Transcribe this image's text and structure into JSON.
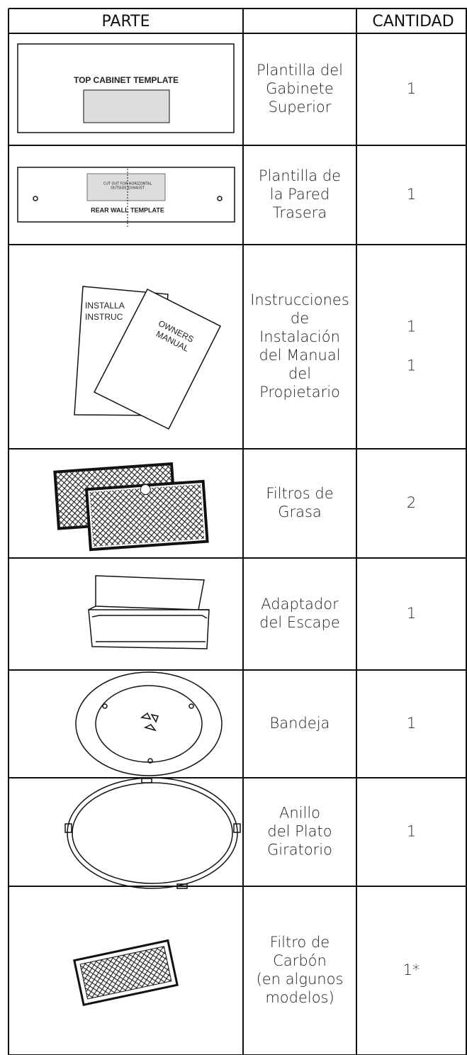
{
  "table": {
    "header": {
      "part": "PARTE",
      "quantity": "CANTIDAD"
    },
    "rows": [
      {
        "illustration": {
          "labels": [
            "TOP CABINET TEMPLATE"
          ]
        },
        "name": [
          "Plantilla del",
          "Gabinete",
          "Superior"
        ],
        "quantity": [
          "1"
        ]
      },
      {
        "illustration": {
          "labels": [
            "REAR WALL TEMPLATE",
            "CUT OUT FOR HORIZONTAL",
            "OUTSIDE EXHAUST"
          ]
        },
        "name": [
          "Plantilla de",
          "la Pared",
          "Trasera"
        ],
        "quantity": [
          "1"
        ]
      },
      {
        "illustration": {
          "labels": [
            "INSTALLA",
            "INSTRUC",
            "OWNERS",
            "MANUAL"
          ]
        },
        "name": [
          "Instrucciones",
          "de",
          "Instalación",
          "del Manual",
          "del",
          "Propietario"
        ],
        "quantity": [
          "1",
          "1"
        ]
      },
      {
        "name": [
          "Filtros de",
          "Grasa"
        ],
        "quantity": [
          "2"
        ]
      },
      {
        "name": [
          "Adaptador",
          "del Escape"
        ],
        "quantity": [
          "1"
        ]
      },
      {
        "name": [
          "Bandeja"
        ],
        "quantity": [
          "1"
        ]
      },
      {
        "name": [
          "Anillo",
          "del Plato",
          "Giratorio"
        ],
        "quantity": [
          "1"
        ]
      },
      {
        "name": [
          "Filtro de",
          "Carbón",
          "(en algunos",
          "modelos)"
        ],
        "quantity": [
          "1*"
        ]
      }
    ]
  }
}
